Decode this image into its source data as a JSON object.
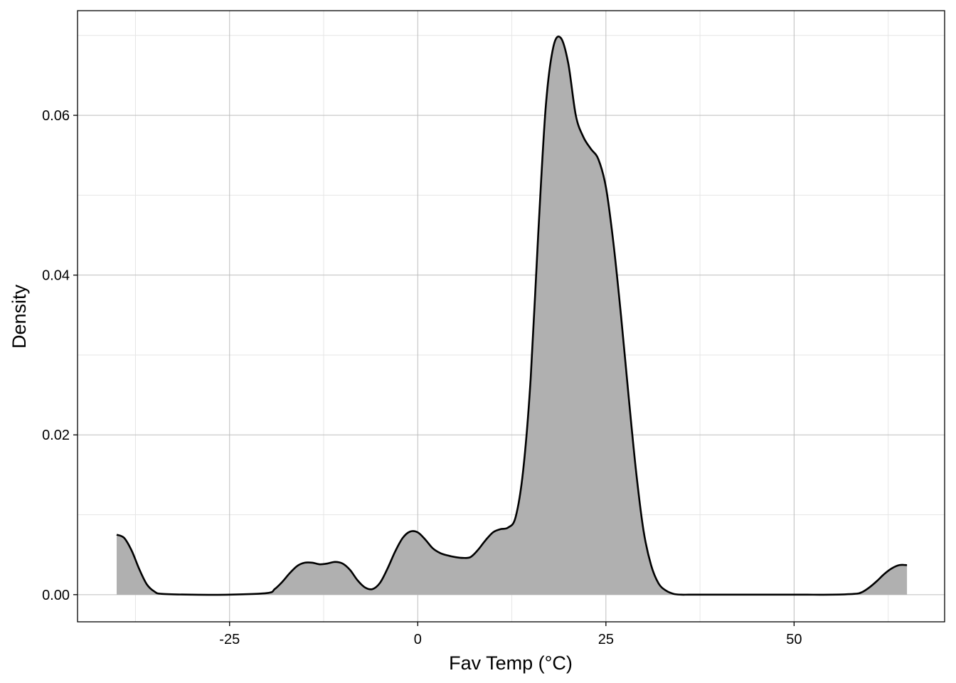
{
  "chart_data": {
    "type": "area",
    "title": "",
    "xlabel": "Fav Temp (°C)",
    "ylabel": "Density",
    "xlim": [
      -45.2,
      70.0
    ],
    "ylim": [
      -0.0034,
      0.0731
    ],
    "x_ticks": [
      -25,
      0,
      25,
      50
    ],
    "x_tick_labels": [
      "-25",
      "0",
      "25",
      "50"
    ],
    "y_ticks": [
      0.0,
      0.02,
      0.04,
      0.06
    ],
    "y_tick_labels": [
      "0.00",
      "0.02",
      "0.04",
      "0.06"
    ],
    "grid": true,
    "fill_color": "#b0b0b0",
    "line_color": "#000000",
    "series": [
      {
        "x": [
          -40,
          -39,
          -38,
          -37,
          -36,
          -35,
          -34,
          -30,
          -25,
          -20,
          -19,
          -18,
          -17,
          -16,
          -15,
          -14,
          -13,
          -12,
          -11,
          -10,
          -9,
          -8,
          -7,
          -6,
          -5,
          -4,
          -3,
          -2,
          -1,
          0,
          1,
          2,
          3,
          4,
          5,
          6,
          7,
          8,
          9,
          10,
          11,
          12,
          13,
          14,
          15,
          16,
          17,
          18,
          19,
          20,
          21,
          22,
          23,
          24,
          25,
          26,
          27,
          28,
          29,
          30,
          31,
          32,
          33,
          34,
          35,
          36,
          38,
          40,
          45,
          50,
          55,
          58,
          59,
          60,
          61,
          62,
          63,
          64,
          65
        ],
        "y": [
          0.0075,
          0.0071,
          0.0055,
          0.0032,
          0.0013,
          0.0004,
          0.0001,
          0.0,
          0.0,
          0.0002,
          0.0007,
          0.0016,
          0.0027,
          0.0036,
          0.004,
          0.004,
          0.0038,
          0.0039,
          0.0041,
          0.0039,
          0.0031,
          0.0018,
          0.0009,
          0.0007,
          0.0015,
          0.0033,
          0.0054,
          0.0071,
          0.0079,
          0.0078,
          0.0069,
          0.0058,
          0.0052,
          0.0049,
          0.0047,
          0.0046,
          0.0047,
          0.0056,
          0.0068,
          0.0078,
          0.0082,
          0.0084,
          0.0097,
          0.0155,
          0.027,
          0.045,
          0.061,
          0.0685,
          0.0697,
          0.0665,
          0.06,
          0.0573,
          0.0558,
          0.0545,
          0.051,
          0.044,
          0.035,
          0.025,
          0.0155,
          0.008,
          0.0037,
          0.0014,
          0.0005,
          0.0001,
          0.0,
          0.0,
          0.0,
          0.0,
          0.0,
          0.0,
          0.0,
          0.0001,
          0.0003,
          0.0009,
          0.0017,
          0.0026,
          0.0033,
          0.0037,
          0.0037
        ]
      }
    ]
  }
}
